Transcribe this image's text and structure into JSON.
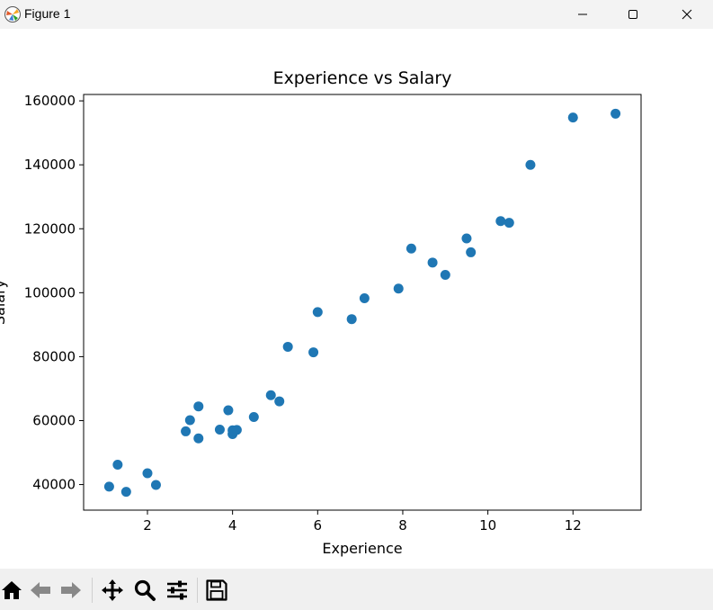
{
  "window": {
    "title": "Figure 1",
    "buttons": [
      "minimize",
      "maximize",
      "close"
    ]
  },
  "toolbar": {
    "icons": [
      "home-icon",
      "back-icon",
      "forward-icon",
      "pan-icon",
      "zoom-icon",
      "configure-subplots-icon",
      "save-icon"
    ]
  },
  "colors": {
    "marker": "#1f77b4",
    "titlebar": "#f3f3f3",
    "toolbar": "#f0f0f0"
  },
  "chart_data": {
    "type": "scatter",
    "title": "Experience vs Salary",
    "xlabel": "Experience",
    "ylabel": "Salary",
    "xlim": [
      0.5,
      13.6
    ],
    "ylim": [
      32000,
      162000
    ],
    "xticks": [
      2,
      4,
      6,
      8,
      10,
      12
    ],
    "yticks": [
      40000,
      60000,
      80000,
      100000,
      120000,
      140000,
      160000
    ],
    "grid": false,
    "x": [
      1.1,
      1.3,
      1.5,
      2.0,
      2.2,
      2.9,
      3.0,
      3.2,
      3.2,
      3.7,
      3.9,
      4.0,
      4.0,
      4.1,
      4.5,
      4.9,
      5.1,
      5.3,
      5.9,
      6.0,
      6.8,
      7.1,
      7.9,
      8.2,
      8.7,
      9.0,
      9.5,
      9.6,
      10.3,
      10.5,
      11.0,
      12.0,
      13.0
    ],
    "y": [
      39343,
      46205,
      37731,
      43525,
      39891,
      56642,
      60150,
      54445,
      64445,
      57189,
      63218,
      55794,
      56957,
      57081,
      61111,
      67938,
      66029,
      83088,
      81363,
      93940,
      91738,
      98273,
      101302,
      113812,
      109431,
      105582,
      116969,
      112635,
      122391,
      121872,
      139980,
      154800,
      156000
    ]
  }
}
